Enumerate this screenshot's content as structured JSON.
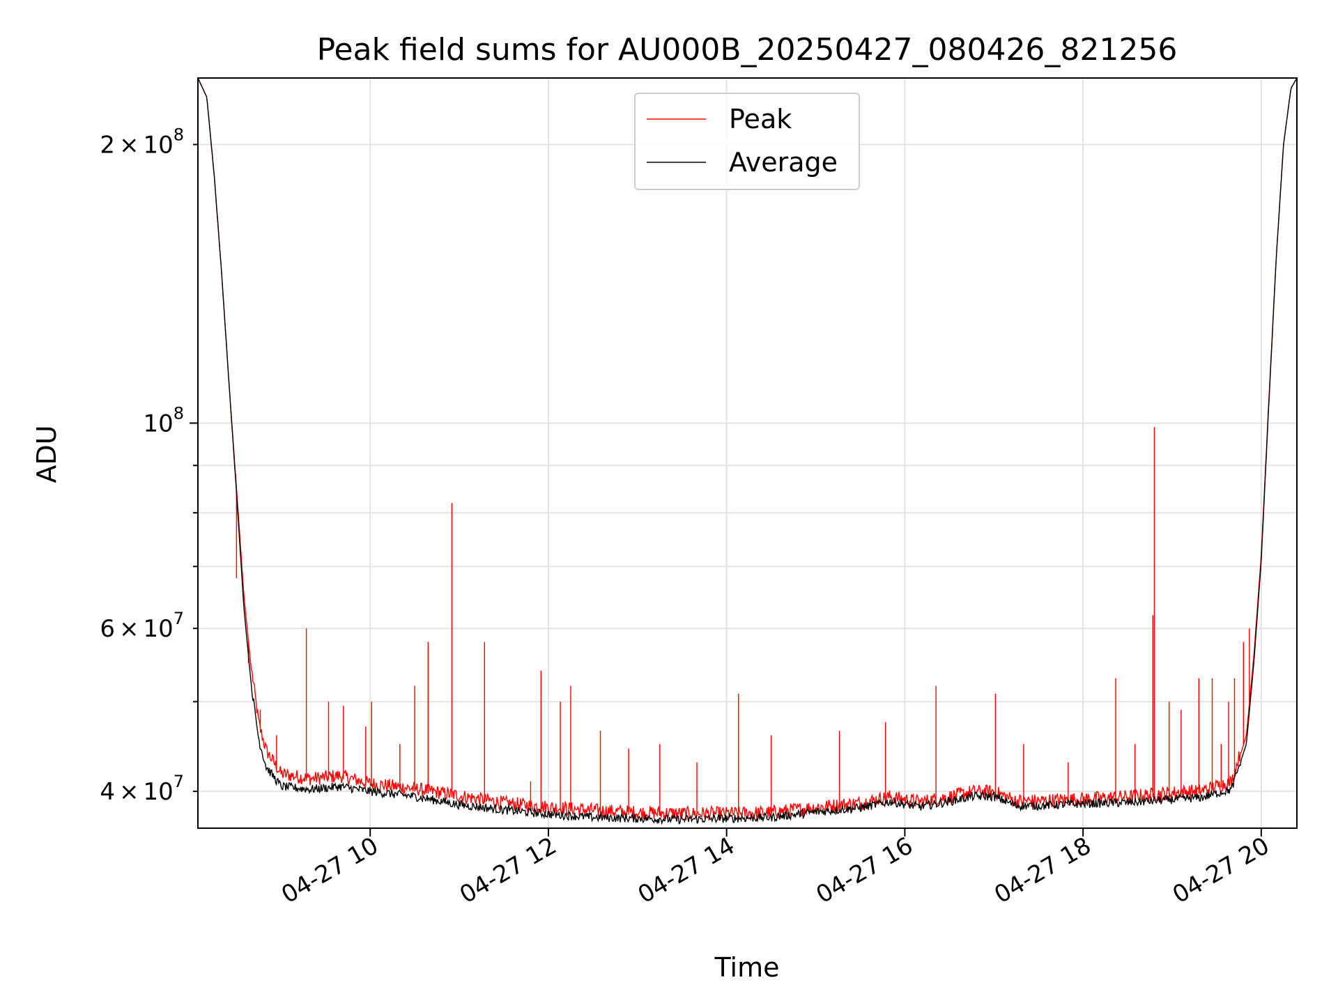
{
  "chart_data": {
    "type": "line",
    "title": "Peak field sums for AU000B_20250427_080426_821256",
    "xlabel": "Time",
    "ylabel": "ADU",
    "y_scale": "log",
    "grid": true,
    "legend": {
      "placement": "top-center"
    },
    "xlim": [
      "2025-04-27 08:04",
      "2025-04-27 20:24"
    ],
    "ylim": [
      36500000,
      236000000
    ],
    "x_ticks": [
      {
        "value": "2025-04-27 10:00",
        "label": "04-27 10"
      },
      {
        "value": "2025-04-27 12:00",
        "label": "04-27 12"
      },
      {
        "value": "2025-04-27 14:00",
        "label": "04-27 14"
      },
      {
        "value": "2025-04-27 16:00",
        "label": "04-27 16"
      },
      {
        "value": "2025-04-27 18:00",
        "label": "04-27 18"
      },
      {
        "value": "2025-04-27 20:00",
        "label": "04-27 20"
      }
    ],
    "y_ticks_major": [
      {
        "value": 100000000,
        "base": "10",
        "exp": "8",
        "mant": ""
      }
    ],
    "y_ticks_minor": [
      {
        "value": 40000000,
        "base": "10",
        "exp": "7",
        "mant": "4"
      },
      {
        "value": 60000000,
        "base": "10",
        "exp": "7",
        "mant": "6"
      },
      {
        "value": 200000000,
        "base": "10",
        "exp": "8",
        "mant": "2"
      }
    ],
    "y_ticks_unlabeled": [
      50000000,
      70000000,
      80000000,
      90000000
    ],
    "series": [
      {
        "name": "Peak",
        "color": "#ff0000",
        "points": [
          [
            "2025-04-27 08:04",
            236000000
          ],
          [
            "2025-04-27 08:10",
            225000000
          ],
          [
            "2025-04-27 08:15",
            185000000
          ],
          [
            "2025-04-27 08:20",
            145000000
          ],
          [
            "2025-04-27 08:25",
            110000000
          ],
          [
            "2025-04-27 08:30",
            85000000
          ],
          [
            "2025-04-27 08:35",
            65000000
          ],
          [
            "2025-04-27 08:40",
            54000000
          ],
          [
            "2025-04-27 08:45",
            47000000
          ],
          [
            "2025-04-27 08:50",
            44000000
          ],
          [
            "2025-04-27 09:00",
            41500000
          ],
          [
            "2025-04-27 09:20",
            41000000
          ],
          [
            "2025-04-27 09:40",
            41300000
          ],
          [
            "2025-04-27 10:00",
            40500000
          ],
          [
            "2025-04-27 10:30",
            40000000
          ],
          [
            "2025-04-27 11:00",
            39300000
          ],
          [
            "2025-04-27 11:30",
            38600000
          ],
          [
            "2025-04-27 12:00",
            38200000
          ],
          [
            "2025-04-27 12:30",
            37900000
          ],
          [
            "2025-04-27 13:00",
            37700000
          ],
          [
            "2025-04-27 13:30",
            37600000
          ],
          [
            "2025-04-27 14:00",
            37600000
          ],
          [
            "2025-04-27 14:30",
            37700000
          ],
          [
            "2025-04-27 15:00",
            38200000
          ],
          [
            "2025-04-27 15:30",
            38600000
          ],
          [
            "2025-04-27 15:50",
            39200000
          ],
          [
            "2025-04-27 16:10",
            38700000
          ],
          [
            "2025-04-27 16:30",
            39200000
          ],
          [
            "2025-04-27 16:45",
            39700000
          ],
          [
            "2025-04-27 17:00",
            39700000
          ],
          [
            "2025-04-27 17:15",
            38800000
          ],
          [
            "2025-04-27 17:30",
            38800000
          ],
          [
            "2025-04-27 18:00",
            39000000
          ],
          [
            "2025-04-27 18:30",
            39200000
          ],
          [
            "2025-04-27 19:00",
            39600000
          ],
          [
            "2025-04-27 19:20",
            39800000
          ],
          [
            "2025-04-27 19:40",
            40700000
          ],
          [
            "2025-04-27 19:50",
            46000000
          ],
          [
            "2025-04-27 19:55",
            56000000
          ],
          [
            "2025-04-27 20:00",
            72000000
          ],
          [
            "2025-04-27 20:05",
            105000000
          ],
          [
            "2025-04-27 20:10",
            150000000
          ],
          [
            "2025-04-27 20:15",
            200000000
          ],
          [
            "2025-04-27 20:20",
            230000000
          ],
          [
            "2025-04-27 20:24",
            236000000
          ]
        ],
        "spikes": [
          [
            "2025-04-27 08:30",
            68000000
          ],
          [
            "2025-04-27 08:38",
            55000000
          ],
          [
            "2025-04-27 08:46",
            49000000
          ],
          [
            "2025-04-27 08:57",
            46000000
          ],
          [
            "2025-04-27 09:17",
            60000000
          ],
          [
            "2025-04-27 09:32",
            50000000
          ],
          [
            "2025-04-27 09:42",
            49500000
          ],
          [
            "2025-04-27 09:57",
            47000000
          ],
          [
            "2025-04-27 10:01",
            50000000
          ],
          [
            "2025-04-27 10:20",
            45000000
          ],
          [
            "2025-04-27 10:30",
            52000000
          ],
          [
            "2025-04-27 10:39",
            58000000
          ],
          [
            "2025-04-27 10:55",
            82000000
          ],
          [
            "2025-04-27 11:17",
            58000000
          ],
          [
            "2025-04-27 11:48",
            41000000
          ],
          [
            "2025-04-27 11:55",
            54000000
          ],
          [
            "2025-04-27 12:08",
            50000000
          ],
          [
            "2025-04-27 12:15",
            52000000
          ],
          [
            "2025-04-27 12:35",
            46500000
          ],
          [
            "2025-04-27 12:54",
            44500000
          ],
          [
            "2025-04-27 13:15",
            45000000
          ],
          [
            "2025-04-27 13:40",
            43000000
          ],
          [
            "2025-04-27 14:08",
            51000000
          ],
          [
            "2025-04-27 14:30",
            46000000
          ],
          [
            "2025-04-27 15:16",
            46500000
          ],
          [
            "2025-04-27 15:47",
            47500000
          ],
          [
            "2025-04-27 16:21",
            52000000
          ],
          [
            "2025-04-27 17:01",
            51000000
          ],
          [
            "2025-04-27 17:20",
            45000000
          ],
          [
            "2025-04-27 17:50",
            43000000
          ],
          [
            "2025-04-27 18:22",
            53000000
          ],
          [
            "2025-04-27 18:35",
            45000000
          ],
          [
            "2025-04-27 18:47",
            62000000
          ],
          [
            "2025-04-27 18:48",
            99000000
          ],
          [
            "2025-04-27 18:58",
            50000000
          ],
          [
            "2025-04-27 19:06",
            49000000
          ],
          [
            "2025-04-27 19:18",
            53000000
          ],
          [
            "2025-04-27 19:27",
            53000000
          ],
          [
            "2025-04-27 19:33",
            45000000
          ],
          [
            "2025-04-27 19:38",
            50000000
          ],
          [
            "2025-04-27 19:42",
            53000000
          ],
          [
            "2025-04-27 19:48",
            58000000
          ],
          [
            "2025-04-27 19:52",
            60000000
          ]
        ]
      },
      {
        "name": "Average",
        "color": "#000000",
        "points": [
          [
            "2025-04-27 08:04",
            236000000
          ],
          [
            "2025-04-27 08:10",
            225000000
          ],
          [
            "2025-04-27 08:15",
            185000000
          ],
          [
            "2025-04-27 08:20",
            145000000
          ],
          [
            "2025-04-27 08:25",
            110000000
          ],
          [
            "2025-04-27 08:30",
            84000000
          ],
          [
            "2025-04-27 08:35",
            63000000
          ],
          [
            "2025-04-27 08:40",
            52000000
          ],
          [
            "2025-04-27 08:45",
            45500000
          ],
          [
            "2025-04-27 08:50",
            42500000
          ],
          [
            "2025-04-27 09:00",
            40500000
          ],
          [
            "2025-04-27 09:20",
            40200000
          ],
          [
            "2025-04-27 09:40",
            40500000
          ],
          [
            "2025-04-27 10:00",
            40000000
          ],
          [
            "2025-04-27 10:30",
            39500000
          ],
          [
            "2025-04-27 11:00",
            38700000
          ],
          [
            "2025-04-27 11:30",
            38200000
          ],
          [
            "2025-04-27 12:00",
            37800000
          ],
          [
            "2025-04-27 12:30",
            37500000
          ],
          [
            "2025-04-27 13:00",
            37400000
          ],
          [
            "2025-04-27 13:30",
            37300000
          ],
          [
            "2025-04-27 14:00",
            37400000
          ],
          [
            "2025-04-27 14:30",
            37500000
          ],
          [
            "2025-04-27 15:00",
            38000000
          ],
          [
            "2025-04-27 15:30",
            38400000
          ],
          [
            "2025-04-27 15:50",
            39000000
          ],
          [
            "2025-04-27 16:10",
            38500000
          ],
          [
            "2025-04-27 16:30",
            39000000
          ],
          [
            "2025-04-27 16:45",
            39500000
          ],
          [
            "2025-04-27 17:00",
            39500000
          ],
          [
            "2025-04-27 17:15",
            38600000
          ],
          [
            "2025-04-27 17:30",
            38600000
          ],
          [
            "2025-04-27 18:00",
            38800000
          ],
          [
            "2025-04-27 18:30",
            38900000
          ],
          [
            "2025-04-27 19:00",
            39200000
          ],
          [
            "2025-04-27 19:20",
            39400000
          ],
          [
            "2025-04-27 19:40",
            40200000
          ],
          [
            "2025-04-27 19:50",
            45000000
          ],
          [
            "2025-04-27 19:55",
            55000000
          ],
          [
            "2025-04-27 20:00",
            71000000
          ],
          [
            "2025-04-27 20:05",
            104000000
          ],
          [
            "2025-04-27 20:10",
            150000000
          ],
          [
            "2025-04-27 20:15",
            200000000
          ],
          [
            "2025-04-27 20:20",
            230000000
          ],
          [
            "2025-04-27 20:24",
            236000000
          ]
        ]
      }
    ]
  }
}
